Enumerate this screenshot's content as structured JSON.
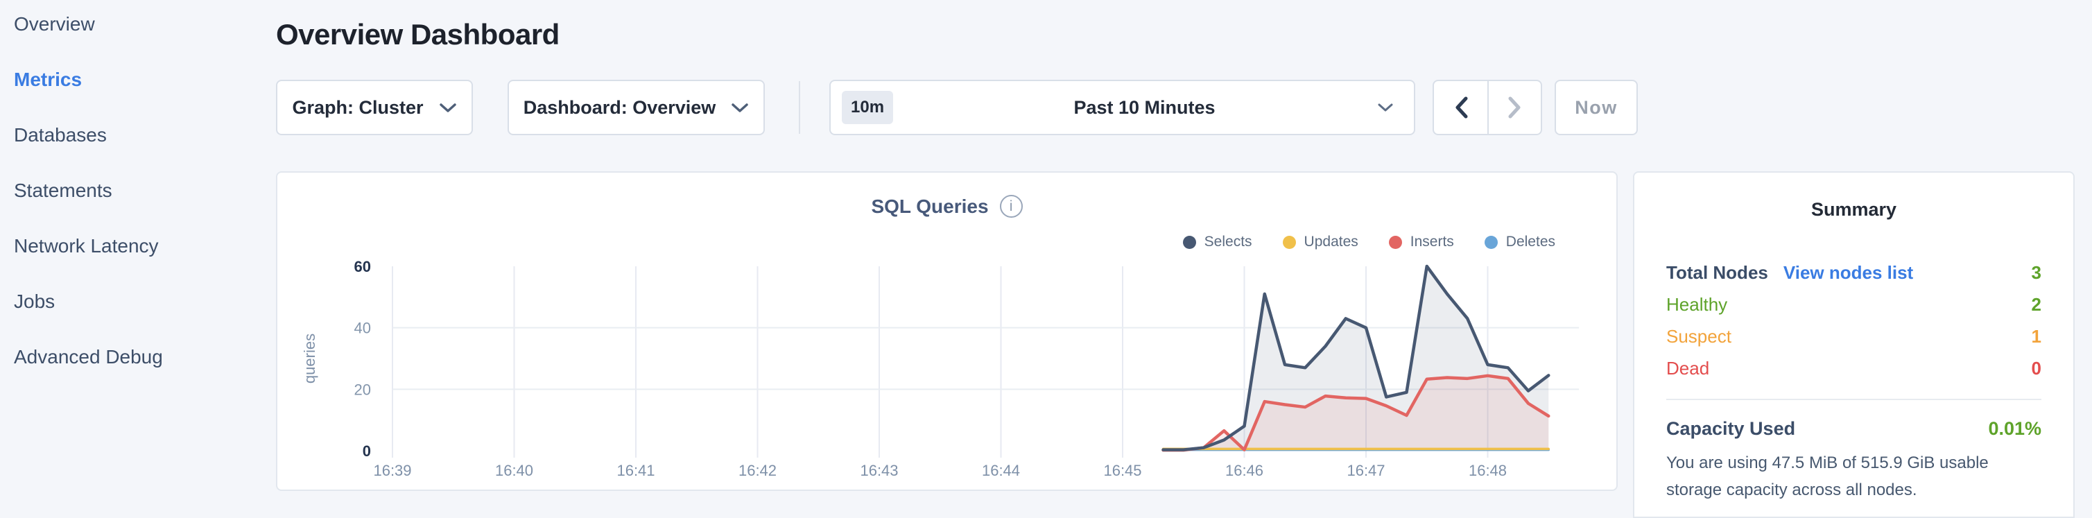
{
  "sidebar": {
    "items": [
      {
        "label": "Overview",
        "active": false
      },
      {
        "label": "Metrics",
        "active": true
      },
      {
        "label": "Databases",
        "active": false
      },
      {
        "label": "Statements",
        "active": false
      },
      {
        "label": "Network Latency",
        "active": false
      },
      {
        "label": "Jobs",
        "active": false
      },
      {
        "label": "Advanced Debug",
        "active": false
      }
    ],
    "active_color": "#3a7ce2"
  },
  "header": {
    "title": "Overview Dashboard"
  },
  "controls": {
    "graph_dropdown": {
      "label": "Graph: Cluster",
      "icon": "chevron-down-icon"
    },
    "dashboard_dropdown": {
      "label": "Dashboard: Overview",
      "icon": "chevron-down-icon"
    },
    "time_selector": {
      "badge": "10m",
      "label": "Past 10 Minutes",
      "icon": "chevron-down-icon"
    },
    "prev_button": {
      "icon": "chevron-left-icon",
      "enabled": true
    },
    "next_button": {
      "icon": "chevron-right-icon",
      "enabled": false
    },
    "now_button": {
      "label": "Now",
      "enabled": false
    }
  },
  "chart": {
    "title": "SQL Queries",
    "info_icon": "i"
  },
  "chart_data": {
    "type": "area",
    "title": "SQL Queries",
    "xlabel": "",
    "ylabel": "queries",
    "ylim": [
      0,
      60
    ],
    "y_ticks": [
      0,
      20,
      40,
      60
    ],
    "x_ticks": [
      "16:39",
      "16:40",
      "16:41",
      "16:42",
      "16:43",
      "16:44",
      "16:45",
      "16:46",
      "16:47",
      "16:48"
    ],
    "x_tick_seconds": [
      0,
      60,
      120,
      180,
      240,
      300,
      360,
      420,
      480,
      540
    ],
    "x_axis_max_seconds": 585,
    "grid": true,
    "legend_position": "top-right",
    "x_seconds": [
      380,
      390,
      400,
      410,
      420,
      430,
      440,
      450,
      460,
      470,
      480,
      490,
      500,
      510,
      520,
      530,
      540,
      550,
      560,
      570
    ],
    "series": [
      {
        "name": "Selects",
        "color": "#475872",
        "fill": "rgba(71,88,114,0.11)",
        "values": [
          0.3,
          0.3,
          1,
          3.5,
          8,
          51,
          28,
          27,
          34,
          43,
          40,
          17.5,
          19,
          60,
          51,
          43,
          28,
          27,
          19.5,
          24.5
        ]
      },
      {
        "name": "Updates",
        "color": "#f0c04a",
        "fill": "rgba(240,192,74,0.25)",
        "values": [
          0.6,
          0.6,
          0.6,
          0.6,
          0.6,
          0.6,
          0.6,
          0.6,
          0.6,
          0.6,
          0.6,
          0.6,
          0.6,
          0.6,
          0.6,
          0.6,
          0.6,
          0.6,
          0.6,
          0.6
        ]
      },
      {
        "name": "Inserts",
        "color": "#e26562",
        "fill": "rgba(226,101,98,0.11)",
        "values": [
          0.2,
          0.2,
          1,
          6.5,
          0.3,
          16,
          15,
          14.2,
          17.8,
          17.2,
          17,
          14.6,
          11.5,
          23.3,
          23.8,
          23.5,
          24.4,
          23.5,
          15.4,
          11.3
        ]
      },
      {
        "name": "Deletes",
        "color": "#69a5d8",
        "fill": "rgba(105,165,216,0.25)",
        "values": [
          0.3,
          0.3,
          0.3,
          0.3,
          0.3,
          0.3,
          0.3,
          0.3,
          0.3,
          0.3,
          0.3,
          0.3,
          0.3,
          0.3,
          0.3,
          0.3,
          0.3,
          0.3,
          0.3,
          0.3
        ]
      }
    ],
    "axis_colors": {
      "tick_label": "#7e90a8",
      "tick_label_bold": "#24344f",
      "grid_v": "#e7eaf2",
      "grid_h": "#e9edf2"
    }
  },
  "summary": {
    "title": "Summary",
    "total_nodes_label": "Total Nodes",
    "view_nodes_link": "View nodes list",
    "total_nodes_value": "3",
    "total_nodes_value_color": "#5ea32a",
    "rows": [
      {
        "label": "Healthy",
        "value": "2",
        "color": "#5ea32a"
      },
      {
        "label": "Suspect",
        "value": "1",
        "color": "#f2a33b"
      },
      {
        "label": "Dead",
        "value": "0",
        "color": "#e34d4d"
      }
    ],
    "capacity_label": "Capacity Used",
    "capacity_value": "0.01%",
    "capacity_value_color": "#5ea32a",
    "capacity_description": "You are using 47.5 MiB of 515.9 GiB usable storage capacity across all nodes."
  }
}
